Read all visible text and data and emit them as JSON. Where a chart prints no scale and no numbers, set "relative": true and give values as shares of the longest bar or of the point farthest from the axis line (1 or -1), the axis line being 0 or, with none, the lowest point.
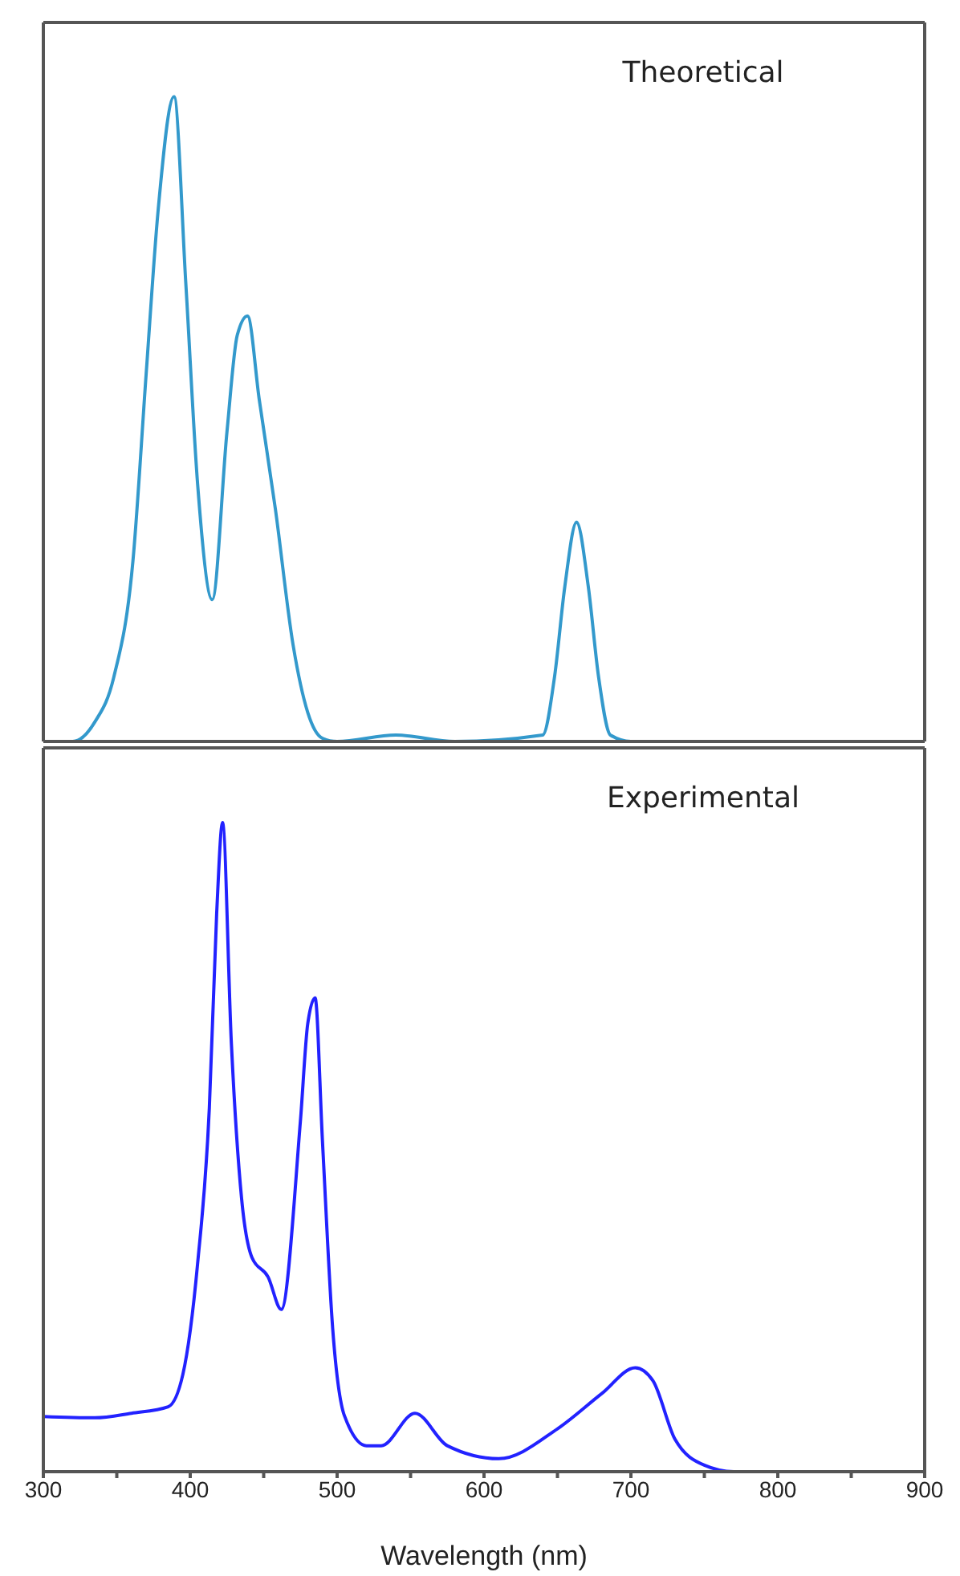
{
  "chart_data": [
    {
      "type": "line",
      "relative": true,
      "annotations": [
        "Theoretical"
      ],
      "tick_labels": false,
      "xlim": [
        300,
        900
      ],
      "xticks": [
        300,
        400,
        500,
        600,
        700,
        800,
        900
      ],
      "x": [
        300,
        320,
        335,
        348,
        361,
        370,
        378,
        389,
        397,
        405,
        415,
        425,
        432,
        439,
        447,
        458,
        470,
        480,
        490,
        500,
        540,
        580,
        640,
        648,
        655,
        663,
        671,
        678,
        686,
        700,
        900
      ],
      "series": [
        {
          "color": "#3399cc",
          "values": [
            0,
            0,
            0.03,
            0.1,
            0.28,
            0.57,
            0.82,
            1,
            0.71,
            0.4,
            0.22,
            0.48,
            0.63,
            0.66,
            0.53,
            0.36,
            0.15,
            0.045,
            0.005,
            0,
            0.01,
            0,
            0.01,
            0.1,
            0.24,
            0.34,
            0.24,
            0.1,
            0.01,
            0,
            0
          ]
        }
      ]
    },
    {
      "type": "line",
      "relative": true,
      "annotations": [
        "Experimental"
      ],
      "tick_labels": "x",
      "xlabel": "Wavelength (nm)",
      "xlim": [
        300,
        900
      ],
      "xticks": [
        300,
        {
          "value": 350,
          "label": null
        },
        400,
        {
          "value": 450,
          "label": null
        },
        500,
        {
          "value": 550,
          "label": null
        },
        600,
        {
          "value": 650,
          "label": null
        },
        700,
        {
          "value": 750,
          "label": null
        },
        800,
        {
          "value": 850,
          "label": null
        },
        900
      ],
      "x": [
        300,
        335,
        360,
        385,
        395,
        405,
        413,
        418,
        422,
        428,
        435,
        442,
        453,
        462,
        475,
        480,
        485,
        490,
        497,
        505,
        520,
        530,
        553,
        575,
        610,
        650,
        680,
        703,
        715,
        730,
        750,
        770,
        800
      ],
      "series": [
        {
          "color": "#2222ff",
          "values": [
            0.085,
            0.083,
            0.09,
            0.1,
            0.15,
            0.32,
            0.56,
            0.86,
            1,
            0.66,
            0.42,
            0.33,
            0.3,
            0.25,
            0.54,
            0.69,
            0.73,
            0.51,
            0.22,
            0.086,
            0.04,
            0.04,
            0.09,
            0.04,
            0.02,
            0.066,
            0.12,
            0.16,
            0.14,
            0.05,
            0.01,
            0,
            0
          ]
        }
      ]
    }
  ]
}
